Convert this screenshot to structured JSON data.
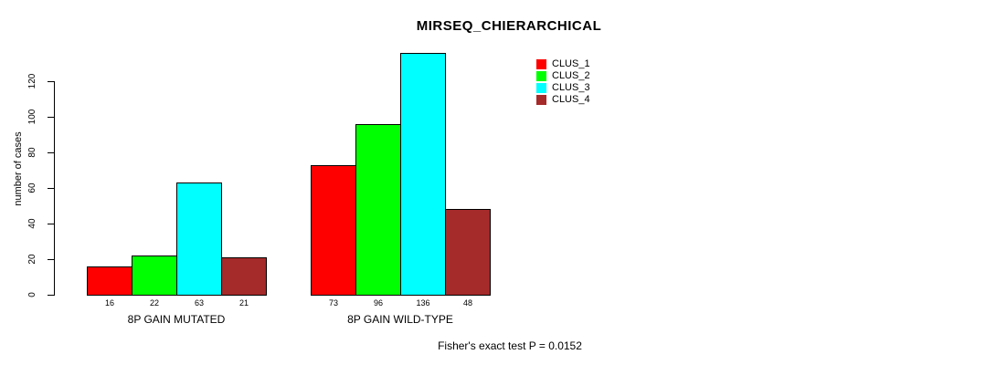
{
  "title": "MIRSEQ_CHIERARCHICAL",
  "footer": "Fisher's exact test P = 0.0152",
  "chart_data": {
    "type": "bar",
    "title": "MIRSEQ_CHIERARCHICAL",
    "xlabel": "",
    "ylabel": "number of cases",
    "categories": [
      "8P GAIN MUTATED",
      "8P GAIN WILD-TYPE"
    ],
    "series": [
      {
        "name": "CLUS_1",
        "color": "#ff0000",
        "values": [
          16,
          73
        ]
      },
      {
        "name": "CLUS_2",
        "color": "#00ff00",
        "values": [
          22,
          96
        ]
      },
      {
        "name": "CLUS_3",
        "color": "#00ffff",
        "values": [
          63,
          136
        ]
      },
      {
        "name": "CLUS_4",
        "color": "#a52a2a",
        "values": [
          21,
          48
        ]
      }
    ],
    "yticks": [
      0,
      20,
      40,
      60,
      80,
      100,
      120
    ],
    "ylim": [
      0,
      136
    ],
    "grid": false,
    "bar_value_labels": true,
    "legend_position": "top-right",
    "legend_entries": [
      "CLUS_1",
      "CLUS_2",
      "CLUS_3",
      "CLUS_4"
    ],
    "annotation": "Fisher's exact test P = 0.0152"
  }
}
